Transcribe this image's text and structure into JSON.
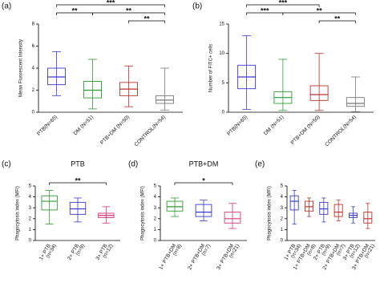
{
  "chart_data": [
    {
      "type": "box",
      "panel_label": "(a)",
      "ylabel": "Mean Fluorescent Intensity",
      "categories": [
        "PTB(N=65)",
        "DM (N=51)",
        "PTB+DM (N=50)",
        "CONTROL(N=54)"
      ],
      "colors": [
        "#3a3ad0",
        "#2e9e2e",
        "#c0302a",
        "#777777"
      ],
      "boxes": [
        {
          "min": 1.5,
          "q1": 2.5,
          "median": 3.2,
          "q3": 4.0,
          "max": 5.5
        },
        {
          "min": 0.3,
          "q1": 1.3,
          "median": 2.0,
          "q3": 2.8,
          "max": 4.8
        },
        {
          "min": 0.5,
          "q1": 1.5,
          "median": 2.1,
          "q3": 2.7,
          "max": 4.2
        },
        {
          "min": 0.2,
          "q1": 0.8,
          "median": 1.1,
          "q3": 1.5,
          "max": 4.0
        }
      ],
      "ylim": [
        0,
        8
      ],
      "yticks": [
        0,
        2,
        4,
        6,
        8
      ],
      "annotations": [
        {
          "text": "**"
        },
        {
          "text": "***"
        },
        {
          "text": "**"
        },
        {
          "text": "**"
        }
      ]
    },
    {
      "type": "box",
      "panel_label": "(b)",
      "ylabel": "Number of FITC+ cells",
      "categories": [
        "PTB(N=65)",
        "DM (N=51)",
        "PTB+DM (N=50)",
        "CONTROL(N=54)"
      ],
      "colors": [
        "#3a3ad0",
        "#2e9e2e",
        "#c0302a",
        "#777777"
      ],
      "boxes": [
        {
          "min": 0.5,
          "q1": 4,
          "median": 6,
          "q3": 8,
          "max": 13
        },
        {
          "min": 0.3,
          "q1": 1.5,
          "median": 2.5,
          "q3": 3.5,
          "max": 9
        },
        {
          "min": 0.3,
          "q1": 2,
          "median": 3,
          "q3": 4.5,
          "max": 10
        },
        {
          "min": 0.1,
          "q1": 1,
          "median": 1.5,
          "q3": 2.5,
          "max": 6
        }
      ],
      "ylim": [
        0,
        15
      ],
      "yticks": [
        0,
        5,
        10,
        15
      ],
      "annotations": [
        {
          "text": "***"
        },
        {
          "text": "***"
        },
        {
          "text": "**"
        },
        {
          "text": "**"
        }
      ]
    },
    {
      "type": "box",
      "panel_label": "(c)",
      "title": "PTB",
      "ylabel": "Phagocytosis index (MFI)",
      "categories": [
        "1+ PTB",
        "2+ PTB",
        "3+ PTB"
      ],
      "n_labels": [
        "(n=34)",
        "(n=9)",
        "(n=12)"
      ],
      "colors": [
        "#2e9e2e",
        "#3a3ad0",
        "#d6337a"
      ],
      "boxes": [
        {
          "min": 1.5,
          "q1": 2.8,
          "median": 3.6,
          "q3": 4.1,
          "max": 4.6
        },
        {
          "min": 1.7,
          "q1": 2.4,
          "median": 2.9,
          "q3": 3.5,
          "max": 3.9
        },
        {
          "min": 1.6,
          "q1": 2.1,
          "median": 2.3,
          "q3": 2.5,
          "max": 3.1
        }
      ],
      "ylim": [
        0,
        5
      ],
      "yticks": [
        0,
        1,
        2,
        3,
        4,
        5
      ],
      "annotations": [
        {
          "text": "**"
        }
      ]
    },
    {
      "type": "box",
      "panel_label": "(d)",
      "title": "PTB+DM",
      "ylabel": "Phagocytosis index (MFI)",
      "categories": [
        "1+ PTB+DM",
        "2+ PTB+DM",
        "3+ PTB+DM"
      ],
      "n_labels": [
        "(n=8)",
        "(n=7)",
        "(n=21)"
      ],
      "colors": [
        "#2e9e2e",
        "#3a3ad0",
        "#d6337a"
      ],
      "boxes": [
        {
          "min": 2.2,
          "q1": 2.7,
          "median": 3.1,
          "q3": 3.6,
          "max": 3.9
        },
        {
          "min": 1.8,
          "q1": 2.2,
          "median": 2.6,
          "q3": 3.3,
          "max": 3.7
        },
        {
          "min": 1.1,
          "q1": 1.6,
          "median": 2.0,
          "q3": 2.6,
          "max": 3.4
        }
      ],
      "ylim": [
        0,
        5
      ],
      "yticks": [
        0,
        1,
        2,
        3,
        4,
        5
      ],
      "annotations": [
        {
          "text": "*"
        }
      ]
    },
    {
      "type": "box",
      "panel_label": "(e)",
      "ylabel": "Phagocytosis index (MFI)",
      "categories": [
        "1+ PTB",
        "1+ PTB+DM",
        "2+ PTB",
        "2+ PTB+DM",
        "3+ PTB",
        "3+ PTB+DM"
      ],
      "n_labels": [
        "(n=34)",
        "(n=8)",
        "(n=9)",
        "(n=7)",
        "(n=12)",
        "(n=21)"
      ],
      "colors": [
        "#3a3ad0",
        "#c0302a",
        "#3a3ad0",
        "#c0302a",
        "#3a3ad0",
        "#c0302a"
      ],
      "boxes": [
        {
          "min": 1.5,
          "q1": 2.8,
          "median": 3.6,
          "q3": 4.1,
          "max": 4.6
        },
        {
          "min": 2.2,
          "q1": 2.7,
          "median": 3.1,
          "q3": 3.6,
          "max": 3.9
        },
        {
          "min": 1.7,
          "q1": 2.4,
          "median": 2.9,
          "q3": 3.5,
          "max": 3.9
        },
        {
          "min": 1.8,
          "q1": 2.2,
          "median": 2.6,
          "q3": 3.3,
          "max": 3.7
        },
        {
          "min": 1.6,
          "q1": 2.1,
          "median": 2.3,
          "q3": 2.5,
          "max": 3.1
        },
        {
          "min": 1.1,
          "q1": 1.6,
          "median": 2.0,
          "q3": 2.6,
          "max": 3.4
        }
      ],
      "ylim": [
        0,
        5
      ],
      "yticks": [
        0,
        1,
        2,
        3,
        4,
        5
      ]
    }
  ]
}
